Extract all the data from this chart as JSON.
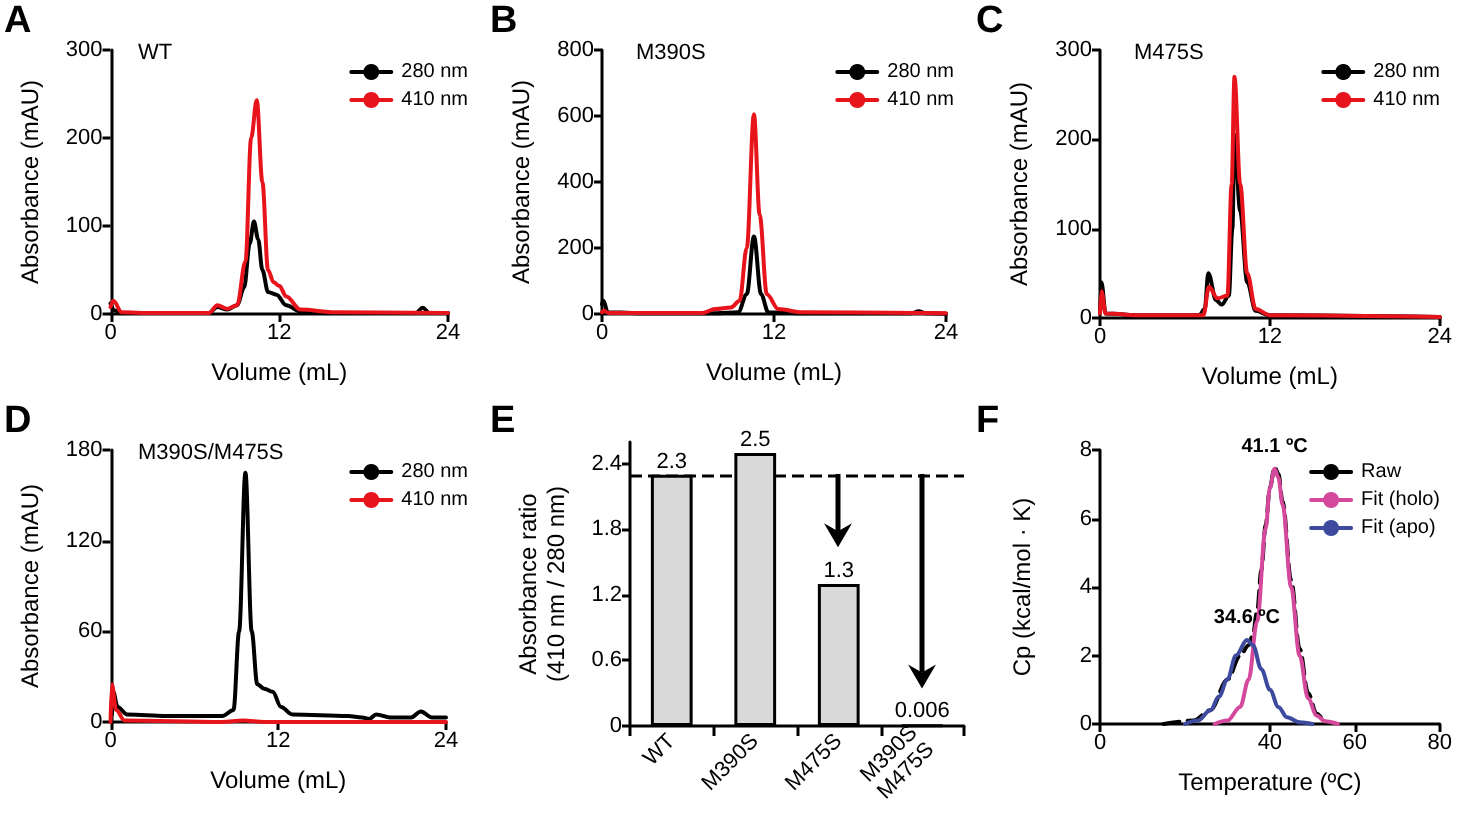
{
  "chart_data": [
    {
      "type": "line",
      "title": "WT",
      "annotations": [
        "A"
      ],
      "xlabel": "Volume (mL)",
      "ylabel": "Absorbance (mAU)",
      "xlim": [
        0,
        24
      ],
      "xticks": [
        0,
        12,
        24
      ],
      "ylim": [
        0,
        300
      ],
      "yticks": [
        0,
        100,
        200,
        300
      ],
      "legend": "top right",
      "marker": "none",
      "line_style": "solid",
      "series": [
        {
          "name": "280 nm",
          "color": "#000000",
          "x": [
            0,
            0.3,
            0.8,
            3,
            7,
            7.6,
            8.3,
            9,
            9.5,
            9.9,
            10.2,
            10.5,
            10.8,
            11.2,
            11.8,
            12.5,
            13.5,
            16,
            21.7,
            22.2,
            22.7,
            24
          ],
          "values": [
            12,
            4,
            1,
            1,
            1,
            8,
            5,
            10,
            30,
            80,
            105,
            85,
            50,
            25,
            22,
            10,
            3,
            1,
            1,
            7,
            1,
            1
          ]
        },
        {
          "name": "410 nm",
          "color": "#e8141c",
          "x": [
            0,
            0.2,
            0.8,
            3,
            7,
            7.6,
            8.3,
            9,
            9.6,
            10.0,
            10.4,
            10.8,
            11.2,
            11.6,
            12.0,
            12.5,
            13.5,
            16,
            24
          ],
          "values": [
            8,
            15,
            2,
            1,
            1,
            10,
            6,
            10,
            60,
            200,
            243,
            150,
            50,
            36,
            32,
            20,
            5,
            2,
            1
          ]
        }
      ]
    },
    {
      "type": "line",
      "title": "M390S",
      "annotations": [
        "B"
      ],
      "xlabel": "Volume (mL)",
      "ylabel": "Absorbance (mAU)",
      "xlim": [
        0,
        24
      ],
      "xticks": [
        0,
        12,
        24
      ],
      "ylim": [
        0,
        800
      ],
      "yticks": [
        0,
        200,
        400,
        600,
        800
      ],
      "legend": "top right",
      "marker": "none",
      "line_style": "solid",
      "series": [
        {
          "name": "280 nm",
          "color": "#000000",
          "x": [
            0,
            0.1,
            0.4,
            3,
            8,
            9.5,
            10.1,
            10.6,
            11.1,
            11.6,
            14,
            21.6,
            22.1,
            22.6,
            24
          ],
          "values": [
            30,
            40,
            5,
            2,
            2,
            5,
            60,
            235,
            60,
            5,
            2,
            2,
            8,
            2,
            1
          ]
        },
        {
          "name": "410 nm",
          "color": "#e8141c",
          "x": [
            0,
            0.1,
            0.5,
            3,
            7,
            7.9,
            9,
            9.6,
            10.1,
            10.6,
            11.0,
            11.5,
            12.3,
            14,
            24
          ],
          "values": [
            5,
            10,
            3,
            3,
            3,
            15,
            20,
            40,
            200,
            605,
            300,
            60,
            15,
            5,
            2
          ]
        }
      ]
    },
    {
      "type": "line",
      "title": "M475S",
      "annotations": [
        "C"
      ],
      "xlabel": "Volume (mL)",
      "ylabel": "Absorbance (mAU)",
      "xlim": [
        0,
        24
      ],
      "xticks": [
        0,
        12,
        24
      ],
      "ylim": [
        0,
        300
      ],
      "yticks": [
        0,
        100,
        200,
        300
      ],
      "legend": "top right",
      "marker": "none",
      "line_style": "solid",
      "series": [
        {
          "name": "280 nm",
          "color": "#000000",
          "x": [
            0,
            0.1,
            0.4,
            3,
            7,
            7.4,
            7.65,
            8.2,
            8.6,
            9.1,
            9.35,
            9.5,
            9.9,
            10.4,
            11,
            12,
            24
          ],
          "values": [
            5,
            40,
            5,
            3,
            3,
            10,
            50,
            20,
            15,
            25,
            100,
            205,
            120,
            40,
            8,
            3,
            1
          ]
        },
        {
          "name": "410 nm",
          "color": "#e8141c",
          "x": [
            0,
            0.1,
            0.4,
            3,
            7.3,
            7.7,
            8.3,
            9.0,
            9.3,
            9.5,
            9.9,
            10.4,
            11,
            12,
            24
          ],
          "values": [
            5,
            30,
            5,
            3,
            3,
            35,
            22,
            25,
            150,
            270,
            150,
            50,
            10,
            3,
            1
          ]
        }
      ]
    },
    {
      "type": "line",
      "title": "M390S/M475S",
      "annotations": [
        "D"
      ],
      "xlabel": "Volume (mL)",
      "ylabel": "Absorbance (mAU)",
      "xlim": [
        0,
        24
      ],
      "xticks": [
        0,
        12,
        24
      ],
      "ylim": [
        0,
        180
      ],
      "yticks": [
        0,
        60,
        120,
        180
      ],
      "legend": "top right",
      "marker": "none",
      "line_style": "solid",
      "series": [
        {
          "name": "280 nm",
          "color": "#000000",
          "x": [
            0.1,
            0.2,
            0.5,
            1.2,
            4,
            8,
            8.8,
            9.2,
            9.65,
            10.1,
            10.5,
            11,
            11.6,
            12.2,
            13,
            17,
            18,
            18.5,
            19,
            20,
            21.5,
            22.2,
            23,
            24
          ],
          "values": [
            5,
            20,
            10,
            5,
            4,
            4,
            8,
            60,
            165,
            60,
            25,
            22,
            20,
            10,
            5,
            4,
            3,
            2,
            5,
            3,
            3,
            7,
            3,
            3
          ]
        },
        {
          "name": "410 nm",
          "color": "#e8141c",
          "x": [
            0,
            0.1,
            0.4,
            1,
            8,
            9.5,
            11,
            24
          ],
          "values": [
            0,
            25,
            8,
            1,
            0,
            1,
            0,
            0
          ]
        }
      ]
    },
    {
      "type": "bar",
      "annotations": [
        "E"
      ],
      "ylabel": "Absorbance ratio\n(410 nm / 280 nm)",
      "categories": [
        "WT",
        "M390S",
        "M475S",
        "M390S\nM475S"
      ],
      "values": [
        2.3,
        2.5,
        1.3,
        0.006
      ],
      "color": "#d9d9d9",
      "data_labels": true,
      "ylim": [
        0,
        2.6
      ],
      "yticks": [
        0,
        0.6,
        1.2,
        1.8,
        2.4
      ],
      "ref_lines": [
        {
          "axis": "y",
          "value": 2.3,
          "color": "#000000",
          "line_style": "dashed"
        }
      ]
    },
    {
      "type": "line",
      "annotations": [
        "F",
        {
          "text": "41.1 ºC",
          "x": 41.1,
          "y": 7.45
        },
        {
          "text": "34.6 ºC",
          "x": 34.6,
          "y": 2.45
        }
      ],
      "xlabel": "Temperature (ºC)",
      "ylabel": "Cp (kcal/mol · K)",
      "xlim": [
        0,
        80
      ],
      "xticks": [
        0,
        40,
        60,
        80
      ],
      "ylim": [
        0,
        8
      ],
      "yticks": [
        0,
        2,
        4,
        6,
        8
      ],
      "legend": "top right",
      "marker": "none",
      "series": [
        {
          "name": "Raw",
          "color": "#000000",
          "line_style": "dashed",
          "x": [
            15,
            22,
            26,
            30,
            33,
            35,
            36,
            37,
            38,
            39,
            40,
            41.1,
            42,
            43,
            45,
            47,
            49,
            51,
            53
          ],
          "values": [
            0,
            0.1,
            0.4,
            1.3,
            2.0,
            2.3,
            2.6,
            3.3,
            4.5,
            5.8,
            6.9,
            7.5,
            7.3,
            6.5,
            4.2,
            2.2,
            0.9,
            0.3,
            0
          ]
        },
        {
          "name": "Fit (holo)",
          "color": "#d4499c",
          "line_style": "solid",
          "x": [
            27,
            30,
            33,
            35,
            37,
            39,
            40,
            41.1,
            42,
            43,
            45,
            47,
            49,
            51,
            53,
            56
          ],
          "values": [
            0,
            0.1,
            0.5,
            1.3,
            3.0,
            5.7,
            6.9,
            7.45,
            7.2,
            6.4,
            4.0,
            2.0,
            0.75,
            0.25,
            0.08,
            0
          ]
        },
        {
          "name": "Fit (apo)",
          "color": "#3d4a9e",
          "line_style": "solid",
          "x": [
            20,
            23,
            26,
            28,
            30,
            32,
            34.6,
            36,
            38,
            40,
            42,
            44,
            47,
            50
          ],
          "values": [
            0,
            0.1,
            0.4,
            0.8,
            1.3,
            2.0,
            2.45,
            2.3,
            1.6,
            1.0,
            0.5,
            0.2,
            0.05,
            0
          ]
        }
      ]
    }
  ]
}
